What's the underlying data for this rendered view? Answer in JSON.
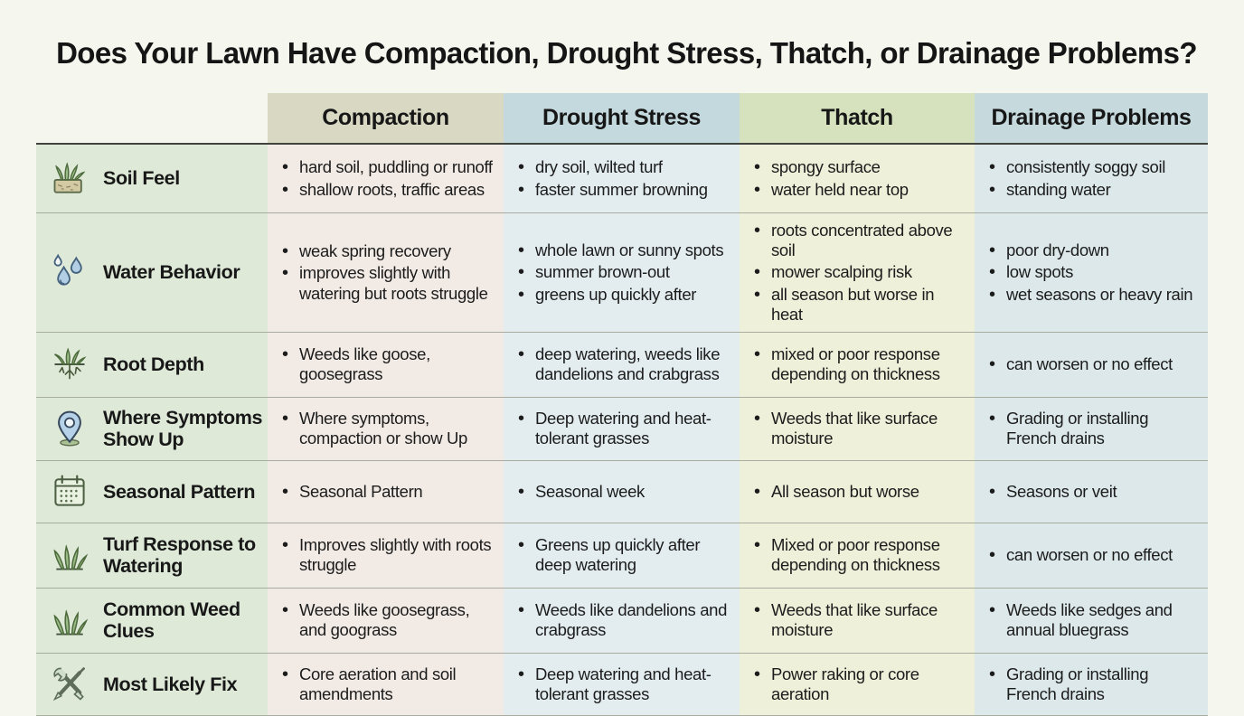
{
  "title": "Does Your Lawn Have Compaction, Drought Stress, Thatch, or Drainage Problems?",
  "palette": {
    "page_bg": "#f5f6ee",
    "row_header_bg": "#dee9d8",
    "header_rule": "#3f423d",
    "row_divider": "#a7aba0"
  },
  "columns": [
    {
      "label": "Compaction",
      "header_bg": "#d8d8c3",
      "cell_bg": "#f2ebe5"
    },
    {
      "label": "Drought Stress",
      "header_bg": "#c4d9de",
      "cell_bg": "#e3edf0"
    },
    {
      "label": "Thatch",
      "header_bg": "#d5e2bd",
      "cell_bg": "#eef0da"
    },
    {
      "label": "Drainage Problems",
      "header_bg": "#c6dade",
      "cell_bg": "#dce8ea"
    }
  ],
  "rows": [
    {
      "label": "Soil Feel",
      "icon": "soil-grass",
      "cells": [
        [
          "hard soil, puddling or runoff",
          "shallow roots, traffic areas"
        ],
        [
          "dry soil, wilted turf",
          "faster summer browning"
        ],
        [
          "spongy surface",
          "water held near top"
        ],
        [
          "consistently soggy soil",
          "standing water"
        ]
      ]
    },
    {
      "label": "Water Behavior",
      "icon": "water-droplets",
      "cells": [
        [
          "weak spring recovery",
          "improves slightly with watering but roots struggle"
        ],
        [
          "whole lawn or sunny spots",
          "summer brown-out",
          "greens up quickly after"
        ],
        [
          "roots concentrated above soil",
          "mower scalping risk",
          "all season but worse in heat"
        ],
        [
          "poor dry-down",
          "low spots",
          "wet seasons or heavy rain"
        ]
      ]
    },
    {
      "label": "Root Depth",
      "icon": "grass-roots",
      "cells": [
        [
          "Weeds like goose, goosegrass"
        ],
        [
          "deep watering, weeds like dandelions and crabgrass"
        ],
        [
          "mixed or poor response depending on thickness"
        ],
        [
          "can worsen or no effect"
        ]
      ]
    },
    {
      "label": "Where Symptoms Show Up",
      "icon": "location-pin",
      "cells": [
        [
          "Where symptoms, compaction or show Up"
        ],
        [
          "Deep watering and heat-tolerant grasses"
        ],
        [
          "Weeds that like surface moisture"
        ],
        [
          "Grading or installing French drains"
        ]
      ]
    },
    {
      "label": "Seasonal Pattern",
      "icon": "calendar",
      "cells": [
        [
          "Seasonal Pattern"
        ],
        [
          "Seasonal week"
        ],
        [
          "All season but worse"
        ],
        [
          "Seasons or veit"
        ]
      ]
    },
    {
      "label": "Turf Response to Watering",
      "icon": "grass-tuft",
      "cells": [
        [
          "Improves slightly with roots struggle"
        ],
        [
          "Greens up quickly after deep watering"
        ],
        [
          "Mixed or poor response depending on thickness"
        ],
        [
          "can worsen or no effect"
        ]
      ]
    },
    {
      "label": "Common Weed Clues",
      "icon": "grass-tuft",
      "cells": [
        [
          "Weeds like goosegrass, and goograss"
        ],
        [
          "Weeds like dandelions and crabgrass"
        ],
        [
          "Weeds that like surface moisture"
        ],
        [
          "Weeds like sedges and annual bluegrass"
        ]
      ]
    },
    {
      "label": "Most Likely Fix",
      "icon": "crossed-tools",
      "cells": [
        [
          "Core aeration and soil amendments"
        ],
        [
          "Deep watering and heat-tolerant grasses"
        ],
        [
          "Power raking or core aeration"
        ],
        [
          "Grading or installing French drains"
        ]
      ]
    }
  ]
}
